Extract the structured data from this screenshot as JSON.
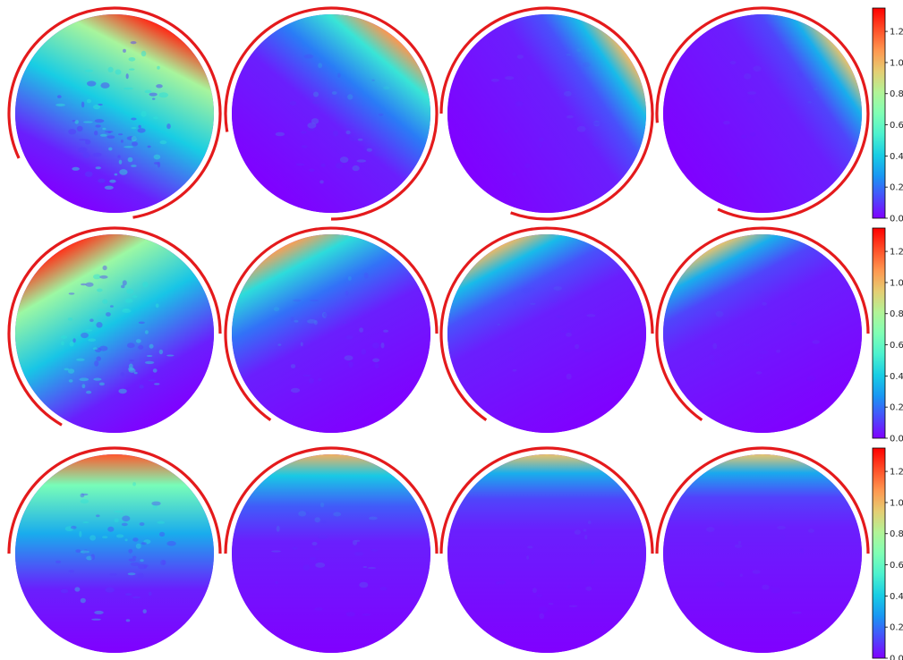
{
  "colormap": {
    "name": "rainbow",
    "stops": [
      "#8000ff",
      "#4a4dfb",
      "#1996f3",
      "#18cde4",
      "#4cf2ce",
      "#80ffb4",
      "#b2f396",
      "#e5cd72",
      "#ff964f",
      "#ff4d27",
      "#ff0000"
    ]
  },
  "colors": {
    "arc": "#e41a1c",
    "low": "#7c0ffb",
    "background": "#ffffff"
  },
  "colorbar": {
    "range": [
      0.0,
      1.35
    ],
    "ticks": [
      "0.0",
      "0.2",
      "0.4",
      "0.6",
      "0.8",
      "1.0",
      "1.2"
    ]
  },
  "grid": {
    "rows": 3,
    "cols": 4,
    "panels": [
      [
        {
          "arc": [
            155,
            440
          ],
          "spread": 1.0,
          "noise": 0.9
        },
        {
          "arc": [
            170,
            450
          ],
          "spread": 0.55,
          "noise": 0.35
        },
        {
          "arc": [
            180,
            470
          ],
          "spread": 0.35,
          "noise": 0.15
        },
        {
          "arc": [
            175,
            475
          ],
          "spread": 0.3,
          "noise": 0.1
        }
      ],
      [
        {
          "arc": [
            120,
            360
          ],
          "spread": 0.95,
          "noise": 0.8
        },
        {
          "arc": [
            125,
            360
          ],
          "spread": 0.5,
          "noise": 0.3
        },
        {
          "arc": [
            125,
            360
          ],
          "spread": 0.35,
          "noise": 0.12
        },
        {
          "arc": [
            125,
            360
          ],
          "spread": 0.3,
          "noise": 0.1
        }
      ],
      [
        {
          "arc": [
            180,
            360
          ],
          "spread": 0.8,
          "noise": 0.7
        },
        {
          "arc": [
            180,
            360
          ],
          "spread": 0.4,
          "noise": 0.25
        },
        {
          "arc": [
            180,
            360
          ],
          "spread": 0.3,
          "noise": 0.12
        },
        {
          "arc": [
            180,
            360
          ],
          "spread": 0.28,
          "noise": 0.1
        }
      ]
    ]
  }
}
